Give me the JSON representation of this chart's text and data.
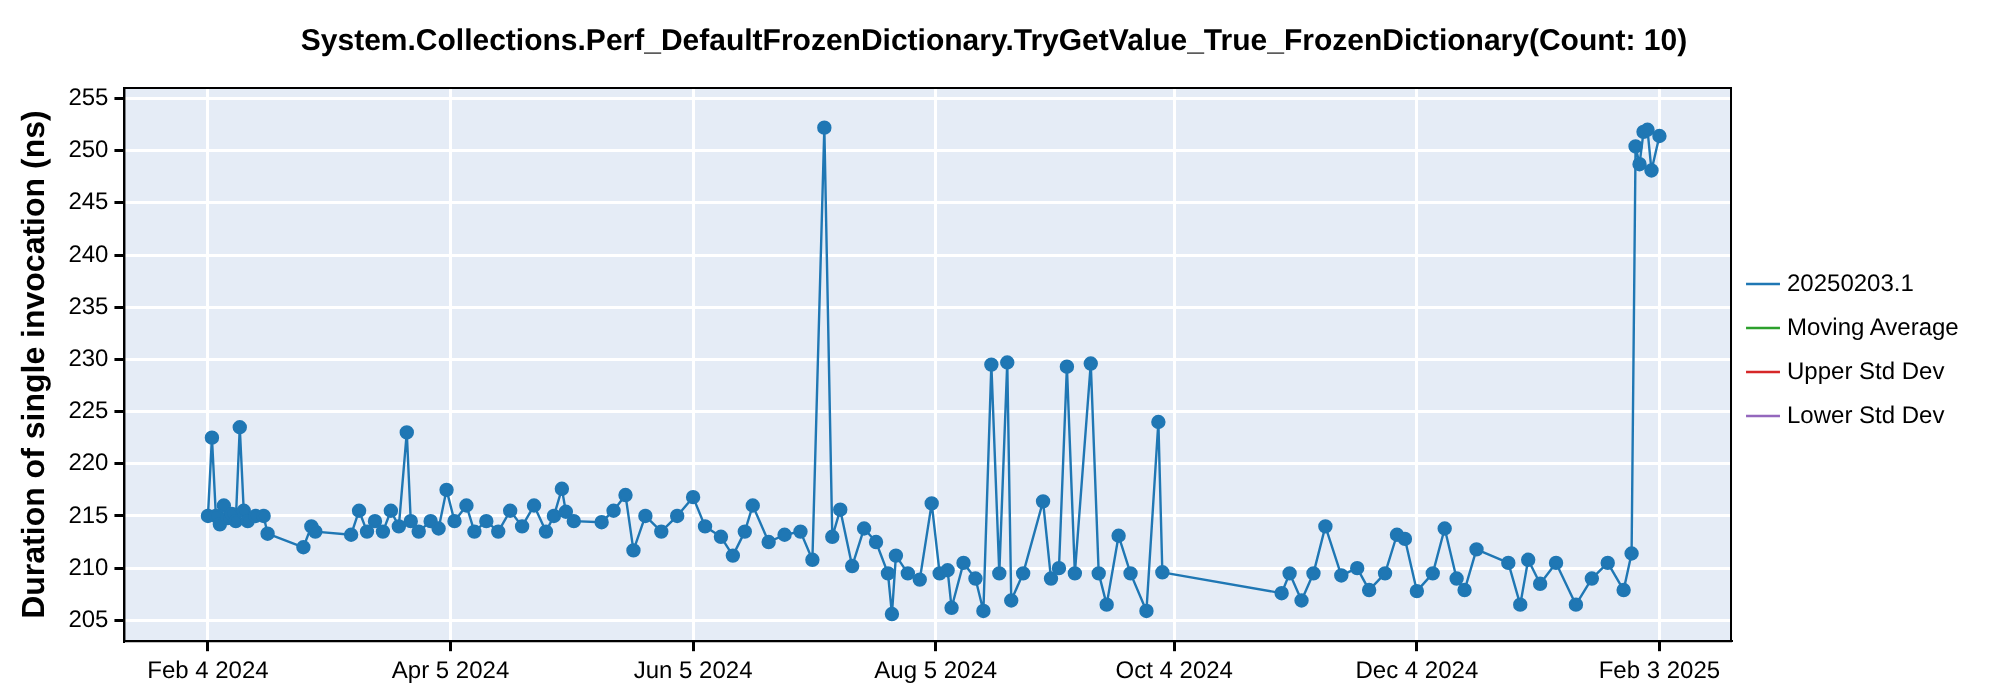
{
  "chart_data": {
    "type": "line",
    "title": "System.Collections.Perf_DefaultFrozenDictionary.TryGetValue_True_FrozenDictionary(Count: 10)",
    "ylabel": "Duration of single invocation (ns)",
    "x": [
      "2024-02-04",
      "2024-02-05",
      "2024-02-06",
      "2024-02-07",
      "2024-02-08",
      "2024-02-09",
      "2024-02-10",
      "2024-02-11",
      "2024-02-12",
      "2024-02-13",
      "2024-02-14",
      "2024-02-16",
      "2024-02-18",
      "2024-02-19",
      "2024-02-28",
      "2024-03-01",
      "2024-03-02",
      "2024-03-11",
      "2024-03-13",
      "2024-03-15",
      "2024-03-17",
      "2024-03-19",
      "2024-03-21",
      "2024-03-23",
      "2024-03-25",
      "2024-03-26",
      "2024-03-28",
      "2024-03-31",
      "2024-04-02",
      "2024-04-04",
      "2024-04-06",
      "2024-04-09",
      "2024-04-11",
      "2024-04-14",
      "2024-04-17",
      "2024-04-20",
      "2024-04-23",
      "2024-04-26",
      "2024-04-29",
      "2024-05-01",
      "2024-05-03",
      "2024-05-04",
      "2024-05-06",
      "2024-05-13",
      "2024-05-16",
      "2024-05-19",
      "2024-05-21",
      "2024-05-24",
      "2024-05-28",
      "2024-06-01",
      "2024-06-05",
      "2024-06-08",
      "2024-06-12",
      "2024-06-15",
      "2024-06-18",
      "2024-06-20",
      "2024-06-24",
      "2024-06-28",
      "2024-07-02",
      "2024-07-05",
      "2024-07-08",
      "2024-07-10",
      "2024-07-12",
      "2024-07-15",
      "2024-07-18",
      "2024-07-21",
      "2024-07-24",
      "2024-07-25",
      "2024-07-26",
      "2024-07-29",
      "2024-08-01",
      "2024-08-04",
      "2024-08-06",
      "2024-08-08",
      "2024-08-09",
      "2024-08-12",
      "2024-08-15",
      "2024-08-17",
      "2024-08-19",
      "2024-08-21",
      "2024-08-23",
      "2024-08-24",
      "2024-08-27",
      "2024-09-01",
      "2024-09-03",
      "2024-09-05",
      "2024-09-07",
      "2024-09-09",
      "2024-09-13",
      "2024-09-15",
      "2024-09-17",
      "2024-09-20",
      "2024-09-23",
      "2024-09-27",
      "2024-09-30",
      "2024-10-01",
      "2024-10-31",
      "2024-11-02",
      "2024-11-05",
      "2024-11-08",
      "2024-11-11",
      "2024-11-15",
      "2024-11-19",
      "2024-11-22",
      "2024-11-26",
      "2024-11-29",
      "2024-12-01",
      "2024-12-04",
      "2024-12-08",
      "2024-12-11",
      "2024-12-14",
      "2024-12-16",
      "2024-12-19",
      "2024-12-27",
      "2024-12-30",
      "2025-01-01",
      "2025-01-04",
      "2025-01-08",
      "2025-01-13",
      "2025-01-17",
      "2025-01-21",
      "2025-01-25",
      "2025-01-27",
      "2025-01-28",
      "2025-01-29",
      "2025-01-30",
      "2025-01-31",
      "2025-02-01",
      "2025-02-03"
    ],
    "series": [
      {
        "name": "20250203.1",
        "color": "#1f77b4",
        "values": [
          215,
          222.5,
          215,
          214.2,
          216,
          214.8,
          215.2,
          214.5,
          223.5,
          215.5,
          214.5,
          215,
          215,
          213.3,
          212,
          214,
          213.5,
          213.2,
          215.5,
          213.5,
          214.5,
          213.5,
          215.5,
          214,
          223,
          214.5,
          213.5,
          214.5,
          213.8,
          217.5,
          214.5,
          216,
          213.5,
          214.5,
          213.5,
          215.5,
          214,
          216,
          213.5,
          215,
          217.6,
          215.4,
          214.5,
          214.4,
          215.5,
          217,
          211.7,
          215,
          213.5,
          215,
          216.8,
          214,
          213,
          211.2,
          213.5,
          216,
          212.5,
          213.2,
          213.5,
          210.8,
          252.2,
          213,
          215.6,
          210.2,
          213.8,
          212.5,
          209.5,
          205.6,
          211.2,
          209.5,
          208.9,
          216.2,
          209.5,
          209.8,
          206.2,
          210.5,
          209,
          205.9,
          229.5,
          209.5,
          229.7,
          206.9,
          209.5,
          216.4,
          209,
          210,
          229.3,
          209.5,
          229.6,
          209.5,
          206.5,
          213.1,
          209.5,
          205.9,
          224,
          209.6,
          207.6,
          209.5,
          206.9,
          209.5,
          214,
          209.3,
          210,
          207.9,
          209.5,
          213.2,
          212.8,
          207.8,
          209.5,
          213.8,
          209,
          207.9,
          211.8,
          210.5,
          206.5,
          210.8,
          208.5,
          210.5,
          206.5,
          209,
          210.5,
          207.9,
          211.4,
          250.4,
          248.7,
          251.8,
          252,
          248.1,
          251.4
        ]
      },
      {
        "name": "Moving Average",
        "color": "#2ca02c",
        "values": [
          null,
          null,
          null,
          null,
          null,
          null,
          null,
          null,
          null,
          null,
          null,
          null,
          null,
          null,
          null,
          null,
          null,
          null,
          null,
          null,
          null,
          null,
          null,
          null,
          null,
          null,
          null,
          null,
          null,
          null,
          null,
          null,
          null,
          null,
          null,
          null,
          null,
          null,
          null,
          null,
          null,
          null,
          null,
          null,
          null,
          null,
          null,
          null,
          null,
          null,
          null,
          null,
          null,
          null,
          null,
          null,
          null,
          null,
          null,
          null,
          null,
          null,
          null,
          null,
          null,
          null,
          null,
          null,
          null,
          null,
          null,
          null,
          null,
          null,
          null,
          null,
          null,
          null,
          null,
          null,
          null,
          null,
          null,
          null,
          null,
          null,
          null,
          null,
          null,
          null,
          null,
          null,
          null,
          null,
          null,
          null,
          null,
          null,
          null,
          null,
          null,
          null,
          null,
          null,
          null,
          null,
          null,
          null,
          null,
          null,
          null,
          null,
          null,
          null,
          null,
          null,
          null,
          null,
          null,
          null,
          null,
          null,
          null,
          null,
          null,
          null,
          null,
          null,
          null
        ]
      },
      {
        "name": "Upper Std Dev",
        "color": "#d62728",
        "values": [
          null,
          null,
          null,
          null,
          null,
          null,
          null,
          null,
          null,
          null,
          null,
          null,
          null,
          null,
          null,
          null,
          null,
          null,
          null,
          null,
          null,
          null,
          null,
          null,
          null,
          null,
          null,
          null,
          null,
          null,
          null,
          null,
          null,
          null,
          null,
          null,
          null,
          null,
          null,
          null,
          null,
          null,
          null,
          null,
          null,
          null,
          null,
          null,
          null,
          null,
          null,
          null,
          null,
          null,
          null,
          null,
          null,
          null,
          null,
          null,
          null,
          null,
          null,
          null,
          null,
          null,
          null,
          null,
          null,
          null,
          null,
          null,
          null,
          null,
          null,
          null,
          null,
          null,
          null,
          null,
          null,
          null,
          null,
          null,
          null,
          null,
          null,
          null,
          null,
          null,
          null,
          null,
          null,
          null,
          null,
          null,
          null,
          null,
          null,
          null,
          null,
          null,
          null,
          null,
          null,
          null,
          null,
          null,
          null,
          null,
          null,
          null,
          null,
          null,
          null,
          null,
          null,
          null,
          null,
          null,
          null,
          null,
          null,
          null,
          null,
          null,
          null,
          null,
          null
        ]
      },
      {
        "name": "Lower Std Dev",
        "color": "#9467bd",
        "values": [
          null,
          null,
          null,
          null,
          null,
          null,
          null,
          null,
          null,
          null,
          null,
          null,
          null,
          null,
          null,
          null,
          null,
          null,
          null,
          null,
          null,
          null,
          null,
          null,
          null,
          null,
          null,
          null,
          null,
          null,
          null,
          null,
          null,
          null,
          null,
          null,
          null,
          null,
          null,
          null,
          null,
          null,
          null,
          null,
          null,
          null,
          null,
          null,
          null,
          null,
          null,
          null,
          null,
          null,
          null,
          null,
          null,
          null,
          null,
          null,
          null,
          null,
          null,
          null,
          null,
          null,
          null,
          null,
          null,
          null,
          null,
          null,
          null,
          null,
          null,
          null,
          null,
          null,
          null,
          null,
          null,
          null,
          null,
          null,
          null,
          null,
          null,
          null,
          null,
          null,
          null,
          null,
          null,
          null,
          null,
          null,
          null,
          null,
          null,
          null,
          null,
          null,
          null,
          null,
          null,
          null,
          null,
          null,
          null,
          null,
          null,
          null,
          null,
          null,
          null,
          null,
          null,
          null,
          null,
          null,
          null,
          null,
          null,
          null,
          null,
          null,
          null,
          null,
          null
        ]
      }
    ],
    "xlim": [
      "2024-01-14",
      "2025-02-21"
    ],
    "xticks": [
      {
        "value": "2024-02-04",
        "label": "Feb 4 2024"
      },
      {
        "value": "2024-04-05",
        "label": "Apr 5 2024"
      },
      {
        "value": "2024-06-05",
        "label": "Jun 5 2024"
      },
      {
        "value": "2024-08-05",
        "label": "Aug 5 2024"
      },
      {
        "value": "2024-10-04",
        "label": "Oct 4 2024"
      },
      {
        "value": "2024-12-04",
        "label": "Dec 4 2024"
      },
      {
        "value": "2025-02-03",
        "label": "Feb 3 2025"
      }
    ],
    "ylim": [
      203,
      256
    ],
    "yticks": [
      205,
      210,
      215,
      220,
      225,
      230,
      235,
      240,
      245,
      250,
      255
    ],
    "grid": true,
    "legend": "right",
    "marker": "circle",
    "line_style": "solid"
  }
}
